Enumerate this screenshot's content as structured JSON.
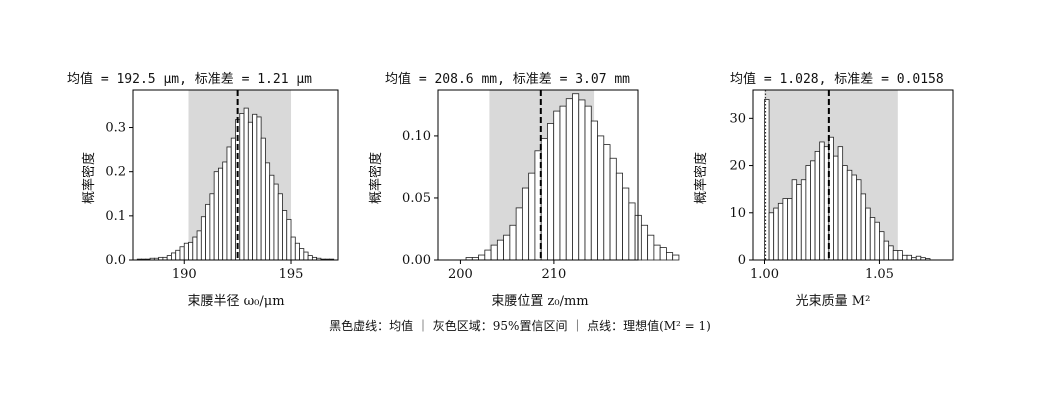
{
  "footer": {
    "legend_text": "黑色虚线：均值 ｜ 灰色区域：95%置信区间 ｜ 点线：理想值(M² = 1)"
  },
  "colors": {
    "bar_fill": "#ffffff",
    "bar_edge": "#222222",
    "ci_band": "#d9d9d9",
    "mean_line": "#000000"
  },
  "chart_data": [
    {
      "type": "bar",
      "title": "均值 = 192.5 μm, 标准差 = 1.21 μm",
      "xlabel": "束腰半径 ω₀/μm",
      "ylabel": "概率密度",
      "xlim": [
        187.6,
        197.2
      ],
      "ylim": [
        0,
        0.385
      ],
      "xticks": [
        190,
        195
      ],
      "xtick_labels": [
        "190",
        "195"
      ],
      "yticks": [
        0,
        0.1,
        0.2,
        0.3
      ],
      "ytick_labels": [
        "0.0",
        "0.1",
        "0.2",
        "0.3"
      ],
      "bin_start": 187.8,
      "bin_width": 0.2,
      "values": [
        0.002,
        0.002,
        0.002,
        0.004,
        0.004,
        0.006,
        0.006,
        0.01,
        0.016,
        0.022,
        0.03,
        0.038,
        0.04,
        0.052,
        0.066,
        0.098,
        0.126,
        0.15,
        0.2,
        0.208,
        0.222,
        0.256,
        0.276,
        0.318,
        0.332,
        0.344,
        0.312,
        0.33,
        0.324,
        0.276,
        0.22,
        0.192,
        0.172,
        0.15,
        0.112,
        0.092,
        0.052,
        0.038,
        0.026,
        0.018,
        0.01,
        0.006,
        0.004,
        0.002,
        0.002,
        0.002
      ],
      "mean": 192.5,
      "ci": [
        190.2,
        195.0
      ],
      "grid": false
    },
    {
      "type": "bar",
      "title": "均值 = 208.6 mm, 标准差 = 3.07 mm",
      "xlabel": "束腰位置 z₀/mm",
      "ylabel": "概率密度",
      "xlim": [
        197.6,
        219.0
      ],
      "ylim": [
        0,
        0.137
      ],
      "xticks": [
        200,
        210
      ],
      "xtick_labels": [
        "200",
        "210"
      ],
      "yticks": [
        0,
        0.05,
        0.1
      ],
      "ytick_labels": [
        "0.00",
        "0.05",
        "0.10"
      ],
      "bin_start": 200.6,
      "bin_width": 0.67,
      "values": [
        0.002,
        0.002,
        0.004,
        0.008,
        0.012,
        0.016,
        0.02,
        0.028,
        0.042,
        0.058,
        0.07,
        0.088,
        0.098,
        0.11,
        0.12,
        0.124,
        0.13,
        0.134,
        0.129,
        0.124,
        0.112,
        0.1,
        0.093,
        0.082,
        0.07,
        0.058,
        0.046,
        0.036,
        0.028,
        0.02,
        0.012,
        0.01,
        0.006,
        0.004
      ],
      "mean": 208.6,
      "ci": [
        203.1,
        214.3
      ],
      "grid": false
    },
    {
      "type": "bar",
      "title": "均值 = 1.028, 标准差 = 0.0158",
      "xlabel": "光束质量 M²",
      "ylabel": "概率密度",
      "xlim": [
        0.995,
        1.082
      ],
      "ylim": [
        0,
        36
      ],
      "xticks": [
        1.0,
        1.05
      ],
      "xtick_labels": [
        "1.00",
        "1.05"
      ],
      "yticks": [
        0,
        10,
        20,
        30
      ],
      "ytick_labels": [
        "0",
        "10",
        "20",
        "30"
      ],
      "bin_start": 1.0,
      "bin_width": 0.002,
      "values": [
        34,
        10,
        11,
        12,
        13,
        13,
        17,
        16,
        17,
        20,
        21,
        23,
        25,
        24,
        26,
        22,
        24,
        20,
        19,
        18,
        17,
        14,
        11,
        9,
        8,
        6,
        4,
        3,
        2,
        2,
        1,
        1,
        0.5,
        0.8,
        0.5,
        0.3
      ],
      "mean": 1.028,
      "ci": [
        1.0,
        1.058
      ],
      "ideal": 1.0,
      "grid": false
    }
  ]
}
